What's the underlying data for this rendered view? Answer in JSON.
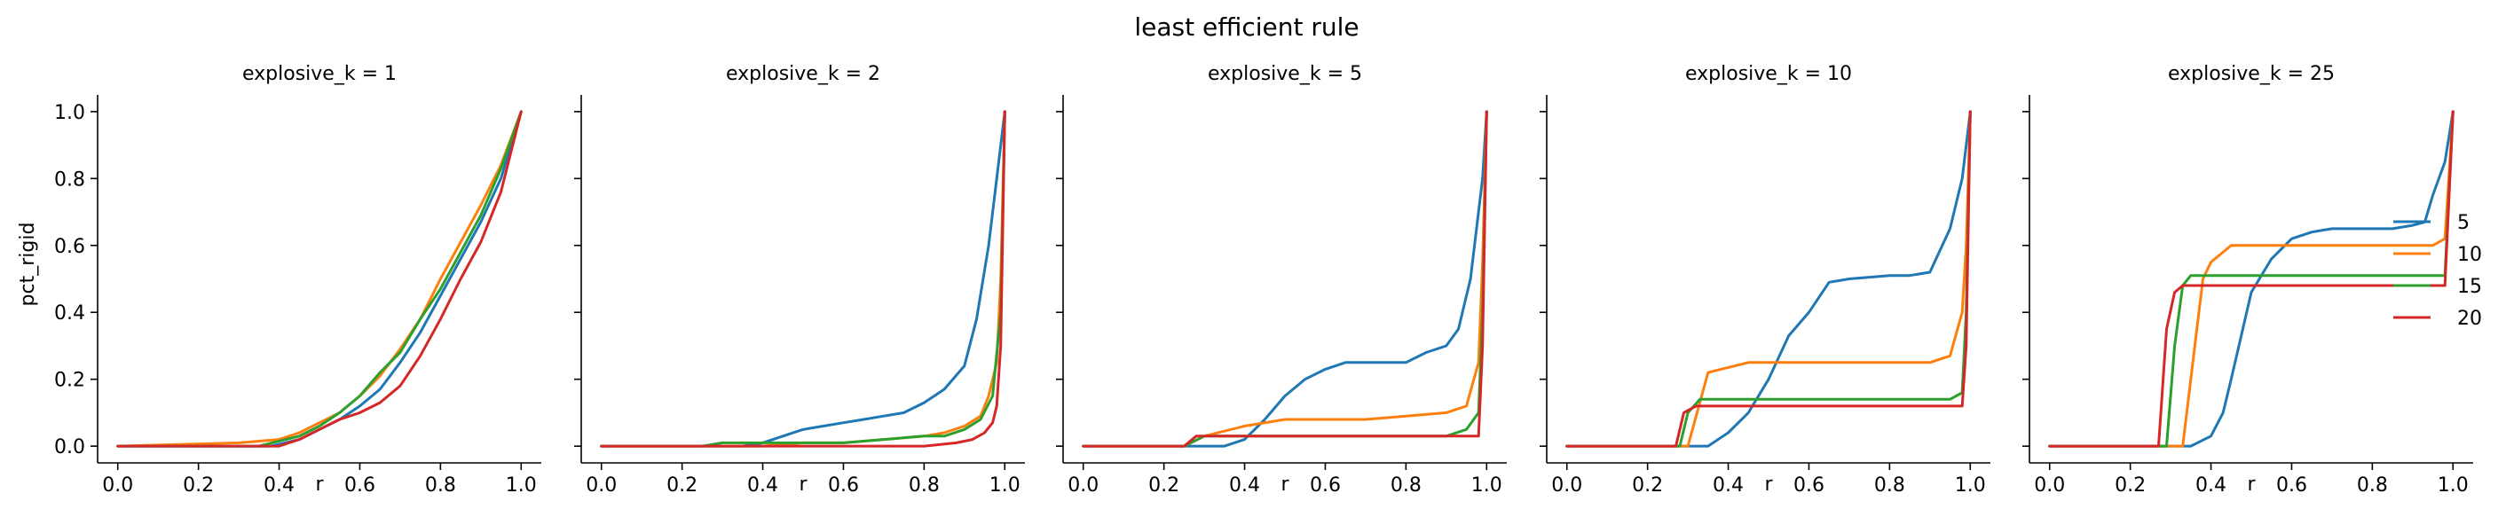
{
  "chart_data": {
    "type": "line",
    "title": "least efficient rule",
    "xlabel": "r",
    "ylabel": "pct_rigid",
    "xlim": [
      -0.05,
      1.05
    ],
    "ylim": [
      -0.05,
      1.05
    ],
    "xticks": [
      "0.0",
      "0.2",
      "0.4",
      "0.6",
      "0.8",
      "1.0"
    ],
    "yticks": [
      "0.0",
      "0.2",
      "0.4",
      "0.6",
      "0.8",
      "1.0"
    ],
    "grid": false,
    "legend": {
      "placement": "right",
      "entries": [
        {
          "label": "5",
          "color": "#1f77b4"
        },
        {
          "label": "10",
          "color": "#ff7f0e"
        },
        {
          "label": "15",
          "color": "#2ca02c"
        },
        {
          "label": "20",
          "color": "#d62728"
        }
      ]
    },
    "panels": [
      {
        "title": "explosive_k = 1",
        "series": [
          {
            "name": "5",
            "color": "#1f77b4",
            "x": [
              0,
              0.38,
              0.45,
              0.5,
              0.55,
              0.6,
              0.65,
              0.7,
              0.75,
              0.8,
              0.85,
              0.9,
              0.95,
              1.0
            ],
            "y": [
              0,
              0,
              0.02,
              0.05,
              0.08,
              0.12,
              0.17,
              0.25,
              0.34,
              0.45,
              0.56,
              0.67,
              0.8,
              1.0
            ]
          },
          {
            "name": "10",
            "color": "#ff7f0e",
            "x": [
              0,
              0.3,
              0.4,
              0.45,
              0.5,
              0.55,
              0.6,
              0.65,
              0.7,
              0.75,
              0.8,
              0.85,
              0.9,
              0.95,
              1.0
            ],
            "y": [
              0,
              0.01,
              0.02,
              0.04,
              0.07,
              0.1,
              0.15,
              0.21,
              0.29,
              0.38,
              0.5,
              0.61,
              0.72,
              0.84,
              1.0
            ]
          },
          {
            "name": "15",
            "color": "#2ca02c",
            "x": [
              0,
              0.35,
              0.45,
              0.5,
              0.55,
              0.6,
              0.65,
              0.7,
              0.75,
              0.8,
              0.85,
              0.9,
              0.95,
              1.0
            ],
            "y": [
              0,
              0,
              0.03,
              0.06,
              0.1,
              0.15,
              0.22,
              0.28,
              0.38,
              0.47,
              0.58,
              0.69,
              0.83,
              1.0
            ]
          },
          {
            "name": "20",
            "color": "#d62728",
            "x": [
              0,
              0.4,
              0.45,
              0.5,
              0.55,
              0.6,
              0.65,
              0.7,
              0.75,
              0.8,
              0.85,
              0.9,
              0.95,
              1.0
            ],
            "y": [
              0,
              0,
              0.02,
              0.05,
              0.08,
              0.1,
              0.13,
              0.18,
              0.27,
              0.38,
              0.5,
              0.61,
              0.76,
              1.0
            ]
          }
        ]
      },
      {
        "title": "explosive_k = 2",
        "series": [
          {
            "name": "5",
            "color": "#1f77b4",
            "x": [
              0,
              0.35,
              0.4,
              0.45,
              0.5,
              0.55,
              0.6,
              0.65,
              0.7,
              0.75,
              0.8,
              0.85,
              0.9,
              0.93,
              0.96,
              0.98,
              1.0
            ],
            "y": [
              0,
              0,
              0.01,
              0.03,
              0.05,
              0.06,
              0.07,
              0.08,
              0.09,
              0.1,
              0.13,
              0.17,
              0.24,
              0.38,
              0.6,
              0.8,
              1.0
            ]
          },
          {
            "name": "10",
            "color": "#ff7f0e",
            "x": [
              0,
              0.4,
              0.5,
              0.6,
              0.7,
              0.8,
              0.85,
              0.9,
              0.94,
              0.96,
              0.98,
              0.99,
              1.0
            ],
            "y": [
              0,
              0,
              0.01,
              0.01,
              0.02,
              0.03,
              0.04,
              0.06,
              0.09,
              0.15,
              0.25,
              0.5,
              1.0
            ]
          },
          {
            "name": "15",
            "color": "#2ca02c",
            "x": [
              0,
              0.25,
              0.3,
              0.6,
              0.7,
              0.8,
              0.85,
              0.9,
              0.94,
              0.97,
              0.99,
              1.0
            ],
            "y": [
              0,
              0,
              0.01,
              0.01,
              0.02,
              0.03,
              0.03,
              0.05,
              0.08,
              0.15,
              0.4,
              1.0
            ]
          },
          {
            "name": "20",
            "color": "#d62728",
            "x": [
              0,
              0.8,
              0.88,
              0.92,
              0.95,
              0.97,
              0.98,
              0.99,
              1.0
            ],
            "y": [
              0,
              0,
              0.01,
              0.02,
              0.04,
              0.07,
              0.12,
              0.3,
              1.0
            ]
          }
        ]
      },
      {
        "title": "explosive_k = 5",
        "series": [
          {
            "name": "5",
            "color": "#1f77b4",
            "x": [
              0,
              0.35,
              0.4,
              0.45,
              0.5,
              0.55,
              0.6,
              0.65,
              0.7,
              0.8,
              0.85,
              0.9,
              0.93,
              0.96,
              0.99,
              1.0
            ],
            "y": [
              0,
              0,
              0.02,
              0.08,
              0.15,
              0.2,
              0.23,
              0.25,
              0.25,
              0.25,
              0.28,
              0.3,
              0.35,
              0.5,
              0.8,
              1.0
            ]
          },
          {
            "name": "10",
            "color": "#ff7f0e",
            "x": [
              0,
              0.25,
              0.3,
              0.4,
              0.5,
              0.6,
              0.7,
              0.8,
              0.9,
              0.95,
              0.98,
              0.99,
              1.0
            ],
            "y": [
              0,
              0,
              0.03,
              0.06,
              0.08,
              0.08,
              0.08,
              0.09,
              0.1,
              0.12,
              0.25,
              0.55,
              1.0
            ]
          },
          {
            "name": "15",
            "color": "#2ca02c",
            "x": [
              0,
              0.25,
              0.3,
              0.9,
              0.95,
              0.98,
              0.99,
              1.0
            ],
            "y": [
              0,
              0,
              0.03,
              0.03,
              0.05,
              0.1,
              0.4,
              1.0
            ]
          },
          {
            "name": "20",
            "color": "#d62728",
            "x": [
              0,
              0.25,
              0.28,
              0.98,
              0.99,
              1.0
            ],
            "y": [
              0,
              0,
              0.03,
              0.03,
              0.3,
              1.0
            ]
          }
        ]
      },
      {
        "title": "explosive_k = 10",
        "series": [
          {
            "name": "5",
            "color": "#1f77b4",
            "x": [
              0,
              0.35,
              0.4,
              0.45,
              0.5,
              0.55,
              0.6,
              0.65,
              0.7,
              0.8,
              0.85,
              0.9,
              0.95,
              0.98,
              1.0
            ],
            "y": [
              0,
              0,
              0.04,
              0.1,
              0.2,
              0.33,
              0.4,
              0.49,
              0.5,
              0.51,
              0.51,
              0.52,
              0.65,
              0.8,
              1.0
            ]
          },
          {
            "name": "10",
            "color": "#ff7f0e",
            "x": [
              0,
              0.3,
              0.35,
              0.45,
              0.9,
              0.95,
              0.98,
              0.99,
              1.0
            ],
            "y": [
              0,
              0,
              0.22,
              0.25,
              0.25,
              0.27,
              0.4,
              0.6,
              1.0
            ]
          },
          {
            "name": "15",
            "color": "#2ca02c",
            "x": [
              0,
              0.28,
              0.3,
              0.33,
              0.95,
              0.98,
              0.99,
              1.0
            ],
            "y": [
              0,
              0,
              0.1,
              0.14,
              0.14,
              0.16,
              0.4,
              1.0
            ]
          },
          {
            "name": "20",
            "color": "#d62728",
            "x": [
              0,
              0.27,
              0.29,
              0.32,
              0.98,
              0.99,
              1.0
            ],
            "y": [
              0,
              0,
              0.1,
              0.12,
              0.12,
              0.3,
              1.0
            ]
          }
        ]
      },
      {
        "title": "explosive_k = 25",
        "series": [
          {
            "name": "5",
            "color": "#1f77b4",
            "x": [
              0,
              0.35,
              0.4,
              0.43,
              0.45,
              0.5,
              0.55,
              0.6,
              0.65,
              0.7,
              0.85,
              0.9,
              0.93,
              0.95,
              0.98,
              1.0
            ],
            "y": [
              0,
              0,
              0.03,
              0.1,
              0.2,
              0.46,
              0.56,
              0.62,
              0.64,
              0.65,
              0.65,
              0.66,
              0.67,
              0.75,
              0.85,
              1.0
            ]
          },
          {
            "name": "10",
            "color": "#ff7f0e",
            "x": [
              0,
              0.33,
              0.35,
              0.38,
              0.4,
              0.45,
              0.95,
              0.98,
              1.0
            ],
            "y": [
              0,
              0,
              0.2,
              0.5,
              0.55,
              0.6,
              0.6,
              0.62,
              1.0
            ]
          },
          {
            "name": "15",
            "color": "#2ca02c",
            "x": [
              0,
              0.29,
              0.31,
              0.33,
              0.35,
              0.98,
              1.0
            ],
            "y": [
              0,
              0,
              0.3,
              0.48,
              0.51,
              0.51,
              1.0
            ]
          },
          {
            "name": "20",
            "color": "#d62728",
            "x": [
              0,
              0.27,
              0.29,
              0.31,
              0.33,
              0.98,
              1.0
            ],
            "y": [
              0,
              0,
              0.35,
              0.46,
              0.48,
              0.48,
              1.0
            ]
          }
        ]
      }
    ]
  }
}
